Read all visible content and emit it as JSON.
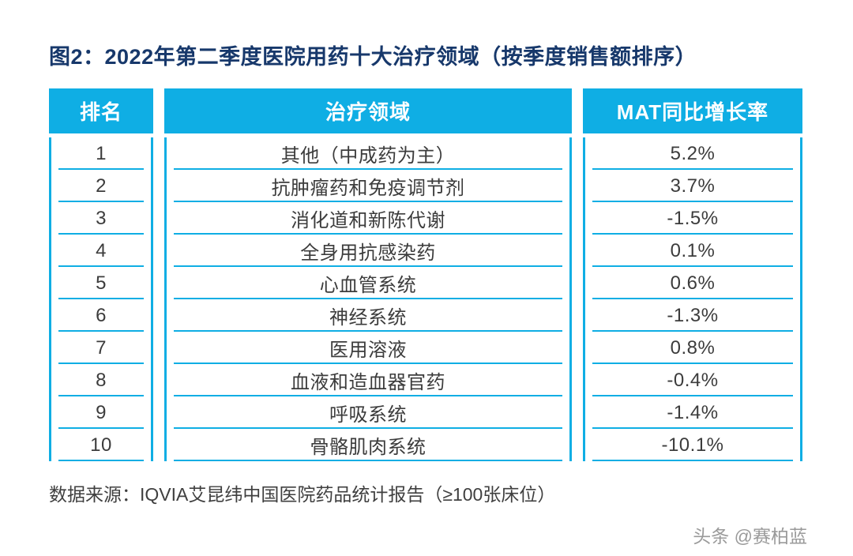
{
  "figure": {
    "title": "图2：2022年第二季度医院用药十大治疗领域（按季度销售额排序）",
    "source": "数据来源：IQVIA艾昆纬中国医院药品统计报告（≥100张床位）",
    "watermark": "头条 @赛柏蓝"
  },
  "colors": {
    "accent": "#0FAEE4",
    "title": "#17386B",
    "cell_text": "#3C3C3C",
    "source_text": "#3F3F3F",
    "watermark": "#9A9A9A"
  },
  "chart_data": {
    "type": "table",
    "title": "2022年第二季度医院用药十大治疗领域（按季度销售额排序）",
    "columns": [
      "排名",
      "治疗领域",
      "MAT同比增长率"
    ],
    "rows": [
      [
        "1",
        "其他（中成药为主）",
        "5.2%"
      ],
      [
        "2",
        "抗肿瘤药和免疫调节剂",
        "3.7%"
      ],
      [
        "3",
        "消化道和新陈代谢",
        "-1.5%"
      ],
      [
        "4",
        "全身用抗感染药",
        "0.1%"
      ],
      [
        "5",
        "心血管系统",
        "0.6%"
      ],
      [
        "6",
        "神经系统",
        "-1.3%"
      ],
      [
        "7",
        "医用溶液",
        "0.8%"
      ],
      [
        "8",
        "血液和造血器官药",
        "-0.4%"
      ],
      [
        "9",
        "呼吸系统",
        "-1.4%"
      ],
      [
        "10",
        "骨骼肌肉系统",
        "-10.1%"
      ]
    ],
    "source": "IQVIA艾昆纬中国医院药品统计报告（≥100张床位）"
  }
}
